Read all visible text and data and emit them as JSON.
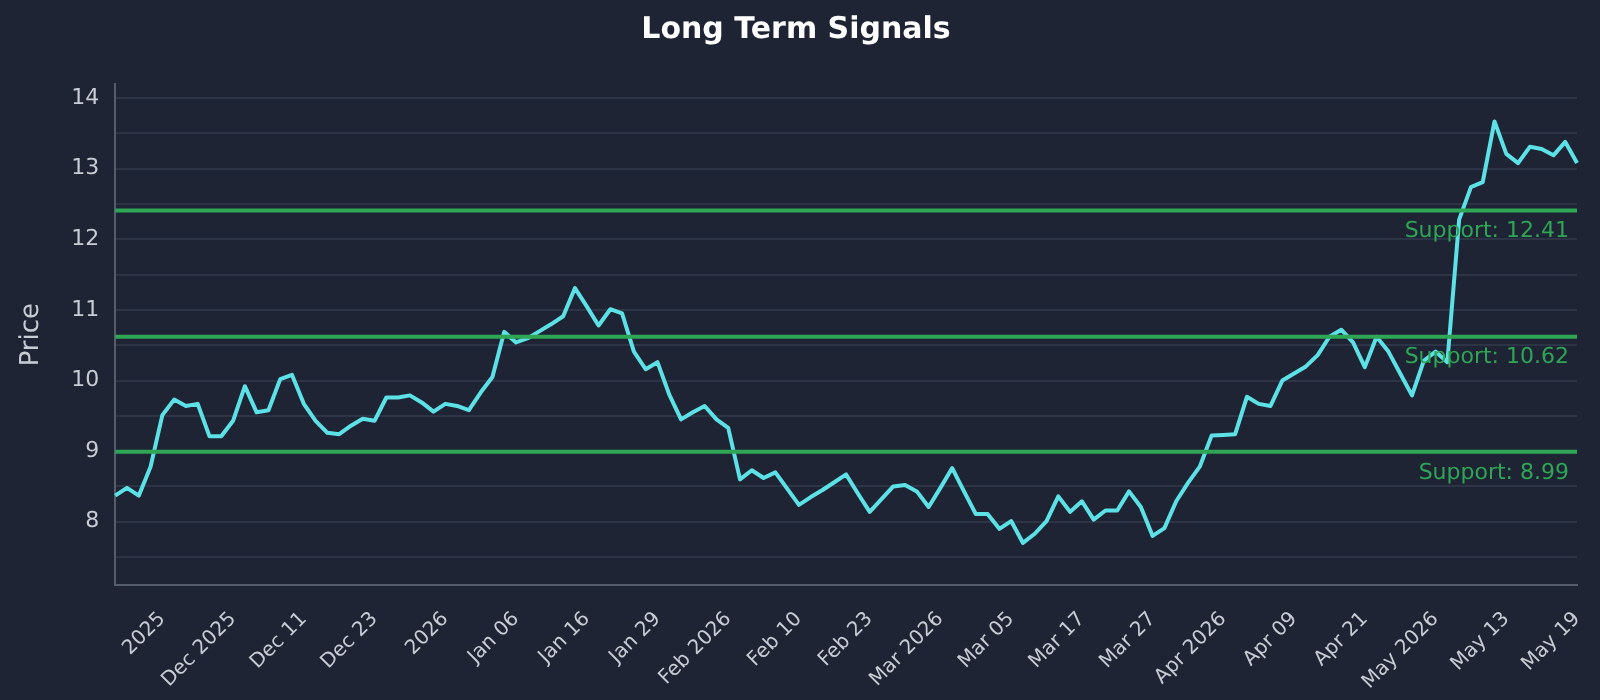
{
  "chart_data": {
    "type": "line",
    "title": "Long Term Signals",
    "ylabel": "Price",
    "categories": [
      null,
      null,
      null,
      null,
      "2025",
      null,
      null,
      null,
      null,
      null,
      "Dec 2025",
      null,
      null,
      null,
      null,
      null,
      "Dec 11",
      null,
      null,
      null,
      null,
      null,
      "Dec 23",
      null,
      null,
      null,
      null,
      null,
      "2026",
      null,
      null,
      null,
      null,
      null,
      "Jan 06",
      null,
      null,
      null,
      null,
      null,
      "Jan 16",
      null,
      null,
      null,
      null,
      null,
      "Jan 29",
      null,
      null,
      null,
      null,
      null,
      "Feb 2026",
      null,
      null,
      null,
      null,
      null,
      "Feb 10",
      null,
      null,
      null,
      null,
      null,
      "Feb 23",
      null,
      null,
      null,
      null,
      null,
      "Mar 2026",
      null,
      null,
      null,
      null,
      null,
      "Mar 05",
      null,
      null,
      null,
      null,
      null,
      "Mar 17",
      null,
      null,
      null,
      null,
      null,
      "Mar 27",
      null,
      null,
      null,
      null,
      null,
      "Apr 2026",
      null,
      null,
      null,
      null,
      null,
      "Apr 09",
      null,
      null,
      null,
      null,
      null,
      "Apr 21",
      null,
      null,
      null,
      null,
      null,
      "May 2026",
      null,
      null,
      null,
      null,
      null,
      "May 13",
      null,
      null,
      null,
      null,
      null,
      "May 19"
    ],
    "series": [
      {
        "color": "#5ce1e6",
        "values": [
          8.37,
          8.48,
          8.37,
          8.78,
          9.51,
          9.73,
          9.64,
          9.67,
          9.21,
          9.21,
          9.43,
          9.92,
          9.55,
          9.58,
          10.02,
          10.08,
          9.67,
          9.43,
          9.26,
          9.24,
          9.36,
          9.46,
          9.43,
          9.76,
          9.76,
          9.79,
          9.69,
          9.56,
          9.67,
          9.64,
          9.58,
          9.83,
          10.05,
          10.69,
          10.54,
          10.6,
          10.7,
          10.8,
          10.91,
          11.31,
          11.05,
          10.78,
          11.01,
          10.95,
          10.41,
          10.16,
          10.26,
          9.8,
          9.45,
          9.55,
          9.64,
          9.45,
          9.33,
          8.6,
          8.73,
          8.62,
          8.7,
          8.47,
          8.24,
          8.35,
          8.45,
          8.56,
          8.67,
          8.4,
          8.14,
          8.32,
          8.5,
          8.52,
          8.43,
          8.21,
          8.48,
          8.76,
          8.43,
          8.11,
          8.11,
          7.9,
          8.01,
          7.7,
          7.83,
          8.01,
          8.36,
          8.14,
          8.29,
          8.03,
          8.16,
          8.16,
          8.43,
          8.21,
          7.8,
          7.91,
          8.29,
          8.55,
          8.78,
          9.22,
          9.23,
          9.24,
          9.77,
          9.67,
          9.64,
          10.0,
          10.1,
          10.2,
          10.36,
          10.62,
          10.72,
          10.54,
          10.19,
          10.62,
          10.41,
          10.1,
          9.79,
          10.28,
          10.41,
          10.26,
          12.28,
          12.74,
          12.81,
          13.67,
          13.21,
          13.08,
          13.31,
          13.28,
          13.19,
          13.38,
          13.08
        ]
      }
    ],
    "ylim": [
      7.1,
      14.2
    ],
    "yticks": [
      {
        "value": 7.5,
        "label": null
      },
      8,
      {
        "value": 8.5,
        "label": null
      },
      9,
      {
        "value": 9.5,
        "label": null
      },
      10,
      {
        "value": 10.5,
        "label": null
      },
      11,
      {
        "value": 11.5,
        "label": null
      },
      12,
      {
        "value": 12.5,
        "label": null
      },
      13,
      {
        "value": 13.5,
        "label": null
      },
      14
    ],
    "grid": "y",
    "legend": false,
    "marker": "none",
    "line_style": "solid",
    "ref_lines": [
      {
        "axis": "y",
        "value": 12.41,
        "label": "Support: 12.41",
        "color": "#2ea656"
      },
      {
        "axis": "y",
        "value": 10.62,
        "label": "Support: 10.62",
        "color": "#2ea656"
      },
      {
        "axis": "y",
        "value": 8.99,
        "label": "Support: 8.99",
        "color": "#2ea656"
      }
    ]
  }
}
